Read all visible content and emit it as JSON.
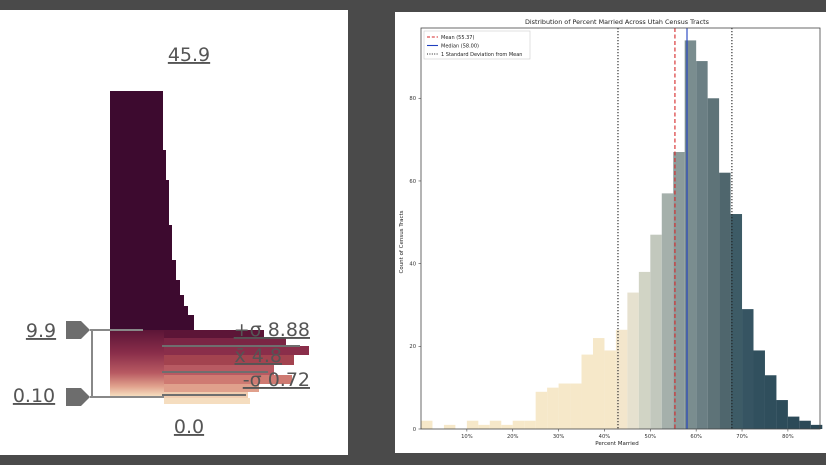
{
  "colors": {
    "background": "#4a4a4a",
    "panel": "#ffffff",
    "mean_line": "#d62728",
    "median_line": "#1f3fbf",
    "sd_line": "#222222",
    "left_gradient": [
      "#3d0a2f",
      "#5c1537",
      "#8a2e4a",
      "#b85a62",
      "#e0a08c",
      "#f5ddbf"
    ]
  },
  "left_legend": {
    "max_label": "45.9",
    "min_label": "0.0",
    "pointer_high_label": "9.9",
    "pointer_low_label": "0.10",
    "plus_sigma_label": "+σ 8.88",
    "mean_label": "x̄ 4.8",
    "minus_sigma_label": "-σ 0.72",
    "pointer_icon": "pentagon-pointer-icon"
  },
  "chart_data": [
    {
      "type": "bar",
      "title": "",
      "xlabel": "",
      "ylabel": "",
      "description_source": "classed-value legend histogram",
      "ylim": [
        0.0,
        45.9
      ],
      "y_ticks": [],
      "categories": [],
      "values": []
    },
    {
      "type": "bar",
      "title": "Distribution of Percent Married Across Utah Census Tracts",
      "xlabel": "Percent Married",
      "ylabel": "Count of Census Tracts",
      "xlim": [
        0,
        87
      ],
      "ylim": [
        0,
        97
      ],
      "x_ticks": [
        10,
        20,
        30,
        40,
        50,
        60,
        70,
        80
      ],
      "x_tick_labels": [
        "10%",
        "20%",
        "30%",
        "40%",
        "50%",
        "60%",
        "70%",
        "80%"
      ],
      "y_ticks": [
        0,
        20,
        40,
        60,
        80
      ],
      "bin_width": 2.5,
      "bin_starts": [
        0,
        2.5,
        5,
        7.5,
        10,
        12.5,
        15,
        17.5,
        20,
        22.5,
        25,
        27.5,
        30,
        32.5,
        35,
        37.5,
        40,
        42.5,
        45,
        47.5,
        50,
        52.5,
        55,
        57.5,
        60,
        62.5,
        65,
        67.5,
        70,
        72.5,
        75,
        77.5,
        80,
        82.5,
        85
      ],
      "values": [
        2,
        0,
        1,
        0,
        2,
        1,
        2,
        1,
        2,
        2,
        9,
        10,
        11,
        11,
        18,
        22,
        19,
        24,
        33,
        38,
        47,
        57,
        67,
        94,
        89,
        80,
        62,
        52,
        29,
        19,
        13,
        7,
        3,
        2,
        1
      ],
      "bar_colors": [
        "#f6e8c9",
        "#f6e8c9",
        "#f6e8c9",
        "#f6e8c9",
        "#f6e8c9",
        "#f6e8c9",
        "#f6e8c9",
        "#f6e8c9",
        "#f6e8c9",
        "#f6e8c9",
        "#f6e8c9",
        "#f6e8c9",
        "#f6e8c9",
        "#f6e8c9",
        "#f6e8c9",
        "#f6e8c9",
        "#f6e8c9",
        "#f3e6cc",
        "#e6e1cf",
        "#d1d4c5",
        "#c2c8bd",
        "#a5b0ab",
        "#8c9c9b",
        "#7a8d8f",
        "#6b7f84",
        "#5e7378",
        "#4f666d",
        "#3d5b66",
        "#365462",
        "#31505e",
        "#2f4e5c",
        "#2d4c5a",
        "#2c4a58",
        "#2b4957",
        "#2a4856"
      ],
      "reference_lines": [
        {
          "name": "Mean (55.37)",
          "x": 55.37,
          "style": "dashed",
          "color": "#d62728"
        },
        {
          "name": "Median (58.00)",
          "x": 58.0,
          "style": "solid",
          "color": "#1f3fbf"
        },
        {
          "name": "1 Standard Deviation from Mean",
          "x": 42.95,
          "style": "dotted",
          "color": "#222222"
        },
        {
          "name": "",
          "x": 67.79,
          "style": "dotted",
          "color": "#222222"
        }
      ],
      "legend": {
        "placement": "top-left",
        "entries": [
          "Mean (55.37)",
          "Median (58.00)",
          "1 Standard Deviation from Mean"
        ]
      },
      "grid": false
    }
  ]
}
